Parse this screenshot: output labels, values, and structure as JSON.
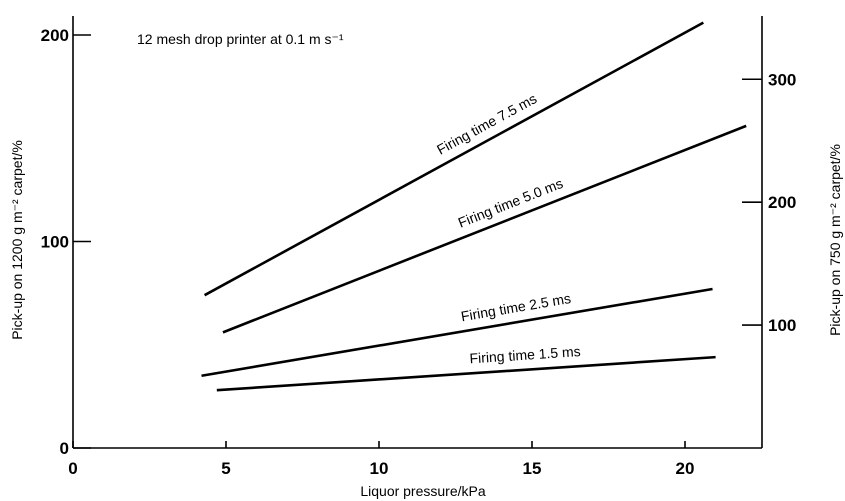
{
  "chart_data": {
    "type": "line",
    "annotation": "12 mesh drop printer at 0.1 m s⁻¹",
    "xlabel": "Liquor pressure/kPa",
    "ylabel": "Pick-up on 1200 g m⁻² carpet/%",
    "ylabel_right": "Pick-up on 750 g m⁻² carpet/%",
    "xlim": [
      0,
      22.5
    ],
    "ylim": [
      0,
      210
    ],
    "ylim_right": [
      0,
      336
    ],
    "x_ticks": [
      "0",
      "5",
      "10",
      "15",
      "20"
    ],
    "y_ticks": [
      "0",
      "100",
      "200"
    ],
    "y_ticks_right": [
      "100",
      "200",
      "300"
    ],
    "grid": false,
    "series": [
      {
        "name": "Firing time 7.5 ms",
        "x": [
          4.3,
          20.6
        ],
        "y": [
          74,
          206
        ]
      },
      {
        "name": "Firing time 5.0 ms",
        "x": [
          4.9,
          22.0
        ],
        "y": [
          56,
          156
        ]
      },
      {
        "name": "Firing time 2.5 ms",
        "x": [
          4.2,
          20.9
        ],
        "y": [
          35,
          77
        ]
      },
      {
        "name": "Firing time 1.5 ms",
        "x": [
          4.7,
          21.0
        ],
        "y": [
          28,
          44
        ]
      }
    ]
  }
}
